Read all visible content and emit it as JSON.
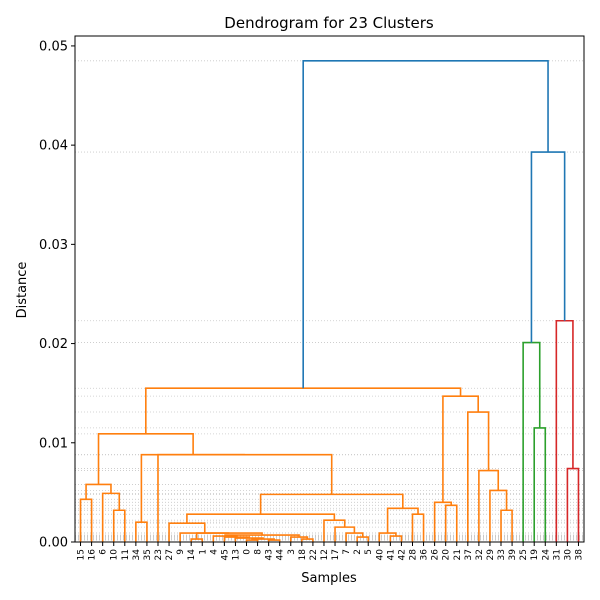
{
  "chart_data": {
    "type": "dendrogram",
    "title": "Dendrogram for 23 Clusters",
    "xlabel": "Samples",
    "ylabel": "Distance",
    "ylim": [
      0,
      0.051
    ],
    "yticks": [
      0.0,
      0.01,
      0.02,
      0.03,
      0.04,
      0.05
    ],
    "ytick_labels": [
      "0.00",
      "0.01",
      "0.02",
      "0.03",
      "0.04",
      "0.05"
    ],
    "grid": "horizontal dotted at each merge height",
    "leaves": [
      "15",
      "16",
      "6",
      "10",
      "11",
      "34",
      "35",
      "23",
      "27",
      "9",
      "14",
      "1",
      "4",
      "45",
      "13",
      "0",
      "8",
      "43",
      "44",
      "3",
      "18",
      "22",
      "12",
      "17",
      "7",
      "2",
      "5",
      "40",
      "41",
      "42",
      "28",
      "36",
      "26",
      "20",
      "21",
      "37",
      "32",
      "29",
      "33",
      "39",
      "25",
      "19",
      "24",
      "31",
      "30",
      "38"
    ],
    "colors": {
      "orange": "#ff7f0e",
      "blue": "#1f77b4",
      "green": "#2ca02c",
      "red": "#d62728",
      "grid": "#c8c8c8"
    },
    "merges": [
      {
        "id": "A",
        "left": "15",
        "right": "16",
        "height": 0.0043,
        "color": "orange"
      },
      {
        "id": "B",
        "left": "10",
        "right": "11",
        "height": 0.0032,
        "color": "orange"
      },
      {
        "id": "C",
        "left": "6",
        "right": "B",
        "height": 0.0049,
        "color": "orange"
      },
      {
        "id": "D",
        "left": "A",
        "right": "C",
        "height": 0.0058,
        "color": "orange"
      },
      {
        "id": "E",
        "left": "34",
        "right": "35",
        "height": 0.002,
        "color": "orange"
      },
      {
        "id": "F",
        "left": "14",
        "right": "1",
        "height": 0.0003,
        "color": "orange"
      },
      {
        "id": "G",
        "left": "0",
        "right": "8",
        "height": 0.0002,
        "color": "orange"
      },
      {
        "id": "H",
        "left": "43",
        "right": "44",
        "height": 0.0002,
        "color": "orange"
      },
      {
        "id": "I",
        "left": "G",
        "right": "H",
        "height": 0.0003,
        "color": "orange"
      },
      {
        "id": "J",
        "left": "13",
        "right": "I",
        "height": 0.0004,
        "color": "orange"
      },
      {
        "id": "K",
        "left": "45",
        "right": "J",
        "height": 0.0005,
        "color": "orange"
      },
      {
        "id": "L",
        "left": "4",
        "right": "K",
        "height": 0.0006,
        "color": "orange"
      },
      {
        "id": "M",
        "left": "18",
        "right": "22",
        "height": 0.0003,
        "color": "orange"
      },
      {
        "id": "N",
        "left": "3",
        "right": "M",
        "height": 0.0005,
        "color": "orange"
      },
      {
        "id": "O",
        "left": "L",
        "right": "N",
        "height": 0.0007,
        "color": "orange"
      },
      {
        "id": "P",
        "left": "F",
        "right": "O",
        "height": 0.0009,
        "color": "orange"
      },
      {
        "id": "Q",
        "left": "9",
        "right": "P",
        "height": 0.0009,
        "color": "orange"
      },
      {
        "id": "R",
        "left": "27",
        "right": "Q",
        "height": 0.0019,
        "color": "orange"
      },
      {
        "id": "S",
        "left": "2",
        "right": "5",
        "height": 0.0005,
        "color": "orange"
      },
      {
        "id": "T",
        "left": "7",
        "right": "S",
        "height": 0.0009,
        "color": "orange"
      },
      {
        "id": "U",
        "left": "17",
        "right": "T",
        "height": 0.0015,
        "color": "orange"
      },
      {
        "id": "V",
        "left": "12",
        "right": "U",
        "height": 0.0022,
        "color": "orange"
      },
      {
        "id": "W",
        "left": "R",
        "right": "V",
        "height": 0.0028,
        "color": "orange"
      },
      {
        "id": "X",
        "left": "41",
        "right": "42",
        "height": 0.0006,
        "color": "orange"
      },
      {
        "id": "Y",
        "left": "40",
        "right": "X",
        "height": 0.0009,
        "color": "orange"
      },
      {
        "id": "Z",
        "left": "28",
        "right": "36",
        "height": 0.0028,
        "color": "orange"
      },
      {
        "id": "AA",
        "left": "Y",
        "right": "Z",
        "height": 0.0034,
        "color": "orange"
      },
      {
        "id": "AB",
        "left": "W",
        "right": "AA",
        "height": 0.0048,
        "color": "orange"
      },
      {
        "id": "AC",
        "left": "23",
        "right": "AB",
        "height": 0.0088,
        "color": "orange"
      },
      {
        "id": "AD",
        "left": "E",
        "right": "AC",
        "height": 0.0088,
        "color": "orange"
      },
      {
        "id": "AE",
        "left": "D",
        "right": "AD",
        "height": 0.0109,
        "color": "orange"
      },
      {
        "id": "AF",
        "left": "20",
        "right": "21",
        "height": 0.0037,
        "color": "orange"
      },
      {
        "id": "AG",
        "left": "26",
        "right": "AF",
        "height": 0.004,
        "color": "orange"
      },
      {
        "id": "AH",
        "left": "33",
        "right": "39",
        "height": 0.0032,
        "color": "orange"
      },
      {
        "id": "AI",
        "left": "29",
        "right": "AH",
        "height": 0.0052,
        "color": "orange"
      },
      {
        "id": "AJ",
        "left": "32",
        "right": "AI",
        "height": 0.0072,
        "color": "orange"
      },
      {
        "id": "AK",
        "left": "37",
        "right": "AJ",
        "height": 0.0131,
        "color": "orange"
      },
      {
        "id": "AL",
        "left": "AG",
        "right": "AK",
        "height": 0.0147,
        "color": "orange"
      },
      {
        "id": "AM",
        "left": "AE",
        "right": "AL",
        "height": 0.0155,
        "color": "orange"
      },
      {
        "id": "AN",
        "left": "19",
        "right": "24",
        "height": 0.0115,
        "color": "green"
      },
      {
        "id": "AO",
        "left": "25",
        "right": "AN",
        "height": 0.0201,
        "color": "green"
      },
      {
        "id": "AP",
        "left": "30",
        "right": "38",
        "height": 0.0074,
        "color": "red"
      },
      {
        "id": "AQ",
        "left": "31",
        "right": "AP",
        "height": 0.0223,
        "color": "red"
      },
      {
        "id": "AR",
        "left": "AO",
        "right": "AQ",
        "height": 0.0393,
        "color": "blue"
      },
      {
        "id": "AS",
        "left": "AM",
        "right": "AR",
        "height": 0.0485,
        "color": "blue"
      }
    ]
  }
}
